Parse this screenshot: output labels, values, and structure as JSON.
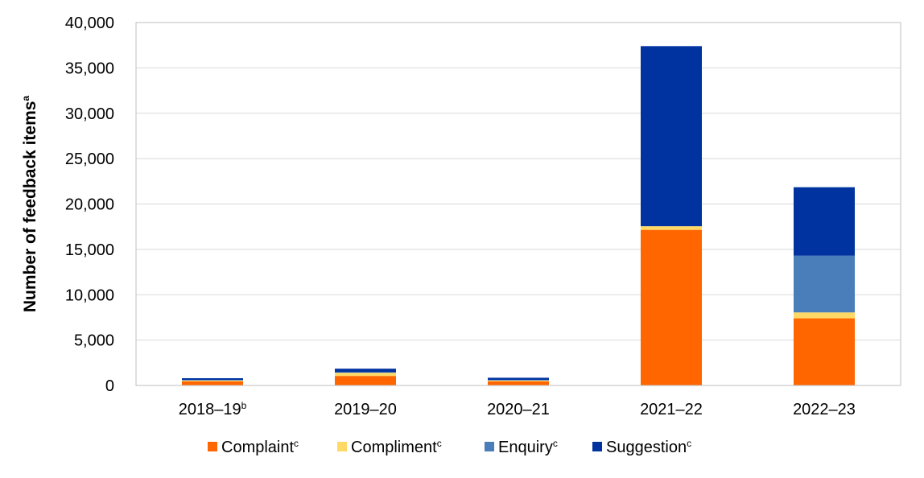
{
  "chart_data": {
    "type": "bar",
    "stacked": true,
    "categories": [
      "2018–19",
      "2019–20",
      "2020–21",
      "2021–22",
      "2022–23"
    ],
    "category_superscripts": [
      "b",
      "",
      "",
      "",
      ""
    ],
    "series": [
      {
        "name": "Complaint",
        "superscript": "c",
        "color": "#ff6600",
        "values": [
          450,
          1050,
          450,
          17150,
          7400
        ]
      },
      {
        "name": "Compliment",
        "superscript": "c",
        "color": "#ffd966",
        "values": [
          100,
          350,
          100,
          400,
          650
        ]
      },
      {
        "name": "Enquiry",
        "superscript": "c",
        "color": "#4a7ebb",
        "values": [
          50,
          50,
          50,
          0,
          6250
        ]
      },
      {
        "name": "Suggestion",
        "superscript": "c",
        "color": "#0033a0",
        "values": [
          200,
          400,
          250,
          19850,
          7550
        ]
      }
    ],
    "ylabel": "Number of feedback items",
    "ylabel_superscript": "a",
    "ylim": [
      0,
      40000
    ],
    "yticks": [
      0,
      5000,
      10000,
      15000,
      20000,
      25000,
      30000,
      35000,
      40000
    ],
    "grid": true,
    "legend_position": "bottom"
  }
}
